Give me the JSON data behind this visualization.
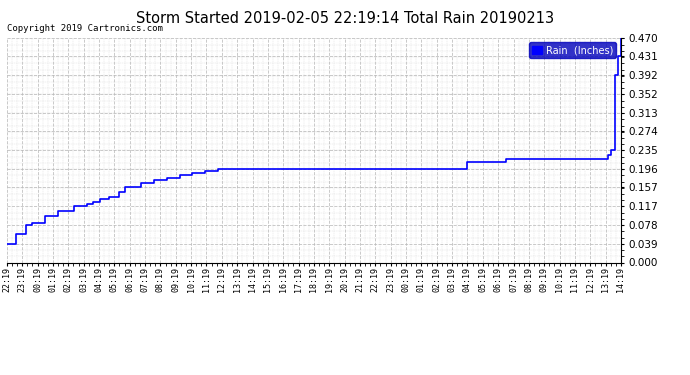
{
  "title": "Storm Started 2019-02-05 22:19:14 Total Rain 20190213",
  "copyright_text": "Copyright 2019 Cartronics.com",
  "legend_label": "Rain  (Inches)",
  "legend_bg": "#0000bb",
  "legend_fg": "#ffffff",
  "line_color": "#0000ff",
  "background_color": "#ffffff",
  "grid_color": "#bbbbbb",
  "ylim": [
    0.0,
    0.47
  ],
  "yticks": [
    0.0,
    0.039,
    0.078,
    0.117,
    0.157,
    0.196,
    0.235,
    0.274,
    0.313,
    0.352,
    0.392,
    0.431,
    0.47
  ],
  "xtick_labels": [
    "22:19",
    "23:19",
    "00:19",
    "01:19",
    "02:19",
    "03:19",
    "04:19",
    "05:19",
    "06:19",
    "07:19",
    "08:19",
    "09:19",
    "10:19",
    "11:19",
    "12:19",
    "13:19",
    "14:19",
    "15:19",
    "16:19",
    "17:19",
    "18:19",
    "19:19",
    "20:19",
    "21:19",
    "22:19",
    "23:19",
    "00:19",
    "01:19",
    "02:19",
    "03:19",
    "04:19",
    "05:19",
    "06:19",
    "07:19",
    "08:19",
    "09:19",
    "10:19",
    "11:19",
    "12:19",
    "13:19",
    "14:19"
  ],
  "rain_data_x_minutes": [
    0,
    5,
    10,
    15,
    20,
    30,
    40,
    50,
    60,
    70,
    80,
    90,
    105,
    115,
    125,
    135,
    145,
    160,
    175,
    185,
    195,
    210,
    230,
    250,
    270,
    290,
    310,
    330,
    350,
    370,
    390,
    420,
    480,
    540,
    600,
    660,
    720,
    780,
    840,
    900,
    940,
    945,
    950,
    955,
    960
  ],
  "rain_data_y": [
    0.039,
    0.039,
    0.039,
    0.059,
    0.059,
    0.078,
    0.083,
    0.083,
    0.098,
    0.098,
    0.108,
    0.108,
    0.117,
    0.117,
    0.122,
    0.127,
    0.132,
    0.137,
    0.147,
    0.157,
    0.157,
    0.167,
    0.172,
    0.177,
    0.182,
    0.187,
    0.192,
    0.196,
    0.196,
    0.196,
    0.196,
    0.196,
    0.196,
    0.196,
    0.196,
    0.196,
    0.21,
    0.216,
    0.216,
    0.216,
    0.225,
    0.235,
    0.392,
    0.431,
    0.47
  ]
}
